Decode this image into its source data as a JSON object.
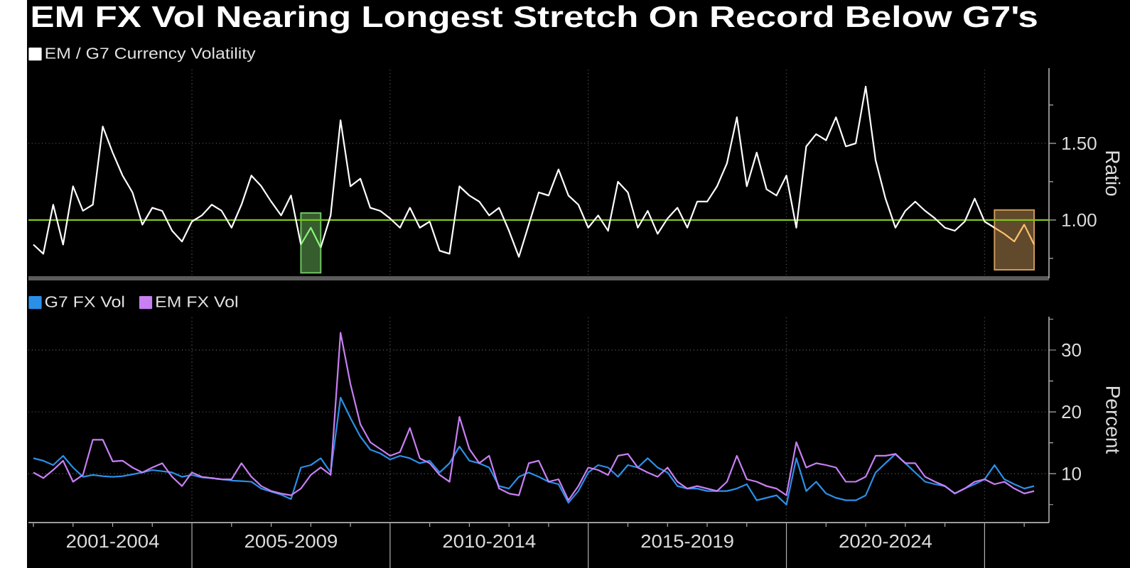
{
  "chart_data": [
    {
      "type": "line",
      "title": "EM FX Vol Nearing Longest Stretch On Record Below G7's",
      "ylabel": "Ratio",
      "categories": [
        null,
        null,
        null,
        null,
        null,
        null,
        null,
        null,
        null,
        null,
        null,
        null,
        null,
        null,
        null,
        null,
        null,
        null,
        null,
        null,
        null,
        null,
        null,
        null,
        null,
        null,
        null,
        null,
        null,
        null,
        null,
        null,
        null,
        null,
        null,
        null,
        null,
        null,
        null,
        null,
        null,
        null,
        null,
        null,
        null,
        null,
        null,
        null,
        null,
        null,
        null,
        null,
        null,
        null,
        null,
        null,
        null,
        null,
        null,
        null,
        null,
        null,
        null,
        null,
        null,
        null,
        null,
        null,
        null,
        null,
        null,
        null,
        null,
        null,
        null,
        null,
        null,
        null,
        null,
        null,
        null,
        null,
        null,
        null,
        null,
        null,
        null,
        null,
        null,
        null,
        null,
        null,
        null,
        null,
        null,
        null,
        null,
        null,
        null,
        null,
        null,
        null,
        null
      ],
      "ylim": [
        0.62,
        1.99
      ],
      "yticks": [
        {
          "value": 1.0,
          "label": "1.00"
        },
        {
          "value": 1.5,
          "label": "1.50"
        }
      ],
      "tick_labels": "y",
      "grid": true,
      "legend": "top left",
      "ref_lines": [
        {
          "axis": "y",
          "value": 1.0,
          "color": "#80c41c"
        }
      ],
      "series": [
        {
          "name": "EM / G7 Currency Volatility",
          "color": "#ffffff",
          "values": [
            0.84,
            0.78,
            1.1,
            0.84,
            1.22,
            1.06,
            1.1,
            1.61,
            1.44,
            1.29,
            1.18,
            0.97,
            1.08,
            1.06,
            0.93,
            0.86,
            0.99,
            1.03,
            1.1,
            1.06,
            0.95,
            1.1,
            1.29,
            1.22,
            1.12,
            1.03,
            1.16,
            0.84,
            null,
            null,
            null,
            null,
            null,
            null,
            null,
            null,
            null,
            null,
            null,
            null,
            null,
            null,
            null,
            null,
            null,
            null,
            null,
            null,
            null,
            null,
            null,
            null,
            null,
            null,
            null,
            null,
            null,
            null,
            null,
            null,
            null,
            null,
            null,
            null,
            null,
            null,
            null,
            null,
            null,
            null,
            null,
            null,
            null,
            null,
            null,
            null,
            null,
            null,
            null,
            null,
            null,
            null,
            null,
            null,
            null,
            null,
            null,
            null,
            null,
            null,
            null,
            null,
            null,
            null,
            null,
            null,
            null,
            null,
            null,
            null,
            null,
            null,
            null
          ]
        },
        {
          "color": "#ffffff",
          "values": [
            null,
            null,
            null,
            null,
            null,
            null,
            null,
            null,
            null,
            null,
            null,
            null,
            null,
            null,
            null,
            null,
            null,
            null,
            null,
            null,
            null,
            null,
            null,
            null,
            null,
            null,
            null,
            null,
            null,
            0.82,
            1.03,
            1.65,
            1.22,
            1.27,
            1.08,
            1.06,
            1.01,
            0.95,
            1.08,
            0.95,
            0.99,
            0.8,
            0.78,
            1.22,
            1.16,
            1.12,
            1.03,
            1.08,
            0.93,
            0.76,
            0.97,
            1.18,
            1.16,
            1.33,
            1.16,
            1.1,
            0.95,
            1.03,
            0.93,
            1.25,
            1.18,
            0.95,
            1.06,
            0.91,
            1.01,
            1.08,
            0.95,
            1.12,
            1.12,
            1.22,
            1.37,
            1.67,
            1.22,
            1.44,
            1.2,
            1.16,
            1.29,
            0.95,
            1.48,
            1.56,
            1.52,
            1.67,
            1.48,
            1.5,
            1.87,
            1.39,
            1.14,
            0.95,
            1.06,
            1.12,
            1.06,
            1.01,
            0.95,
            0.93,
            0.99,
            1.14,
            0.99,
            0.95,
            null,
            null,
            null,
            null,
            null
          ]
        },
        {
          "color": "#8cf57a",
          "values": [
            null,
            null,
            null,
            null,
            null,
            null,
            null,
            null,
            null,
            null,
            null,
            null,
            null,
            null,
            null,
            null,
            null,
            null,
            null,
            null,
            null,
            null,
            null,
            null,
            null,
            null,
            null,
            0.84,
            0.95,
            0.82,
            null,
            null,
            null,
            null,
            null,
            null,
            null,
            null,
            null,
            null,
            null,
            null,
            null,
            null,
            null,
            null,
            null,
            null,
            null,
            null,
            null,
            null,
            null,
            null,
            null,
            null,
            null,
            null,
            null,
            null,
            null,
            null,
            null,
            null,
            null,
            null,
            null,
            null,
            null,
            null,
            null,
            null,
            null,
            null,
            null,
            null,
            null,
            null,
            null,
            null,
            null,
            null,
            null,
            null,
            null,
            null,
            null,
            null,
            null,
            null,
            null,
            null,
            null,
            null,
            null,
            null,
            null,
            null,
            null,
            null,
            null,
            null,
            null
          ]
        },
        {
          "color": "#ffc070",
          "values": [
            null,
            null,
            null,
            null,
            null,
            null,
            null,
            null,
            null,
            null,
            null,
            null,
            null,
            null,
            null,
            null,
            null,
            null,
            null,
            null,
            null,
            null,
            null,
            null,
            null,
            null,
            null,
            null,
            null,
            null,
            null,
            null,
            null,
            null,
            null,
            null,
            null,
            null,
            null,
            null,
            null,
            null,
            null,
            null,
            null,
            null,
            null,
            null,
            null,
            null,
            null,
            null,
            null,
            null,
            null,
            null,
            null,
            null,
            null,
            null,
            null,
            null,
            null,
            null,
            null,
            null,
            null,
            null,
            null,
            null,
            null,
            null,
            null,
            null,
            null,
            null,
            null,
            null,
            null,
            null,
            null,
            null,
            null,
            null,
            null,
            null,
            null,
            null,
            null,
            null,
            null,
            null,
            null,
            null,
            null,
            null,
            null,
            0.95,
            0.91,
            0.86,
            0.97,
            0.84,
            null
          ]
        }
      ]
    },
    {
      "type": "line",
      "ylabel": "Percent",
      "categories": [
        null,
        null,
        null,
        null,
        null,
        null,
        null,
        null,
        "2001-2004",
        null,
        null,
        null,
        null,
        null,
        null,
        null,
        null,
        null,
        null,
        null,
        null,
        null,
        null,
        null,
        null,
        null,
        "2005-2009",
        null,
        null,
        null,
        null,
        null,
        null,
        null,
        null,
        null,
        null,
        null,
        null,
        null,
        null,
        null,
        null,
        null,
        null,
        null,
        "2010-2014",
        null,
        null,
        null,
        null,
        null,
        null,
        null,
        null,
        null,
        null,
        null,
        null,
        null,
        null,
        null,
        null,
        null,
        null,
        null,
        "2015-2019",
        null,
        null,
        null,
        null,
        null,
        null,
        null,
        null,
        null,
        null,
        null,
        null,
        null,
        null,
        null,
        null,
        null,
        null,
        null,
        "2020-2024",
        null,
        null,
        null,
        null,
        null,
        null,
        null,
        null,
        null,
        null,
        null,
        null,
        null,
        null,
        null,
        null
      ],
      "ylim": [
        2.1,
        35.4
      ],
      "yticks": [
        10,
        20,
        30
      ],
      "grid": true,
      "legend": "top left",
      "series": [
        {
          "name": "G7 FX Vol",
          "color": "#2b8fe8",
          "values": [
            12.5,
            12.1,
            11.4,
            12.9,
            11.0,
            9.5,
            9.8,
            9.6,
            9.5,
            9.6,
            9.9,
            10.2,
            10.6,
            10.4,
            10.2,
            9.5,
            9.8,
            9.4,
            9.3,
            9.1,
            8.9,
            8.8,
            8.7,
            7.6,
            7.1,
            6.6,
            5.9,
            11.0,
            11.4,
            12.5,
            10.2,
            22.3,
            19.0,
            16.0,
            13.9,
            13.3,
            12.3,
            12.9,
            12.5,
            11.7,
            12.1,
            10.2,
            11.7,
            14.4,
            12.1,
            11.7,
            11.0,
            8.0,
            7.6,
            9.5,
            10.2,
            9.5,
            8.7,
            8.3,
            5.3,
            7.2,
            10.2,
            11.4,
            11.0,
            9.5,
            11.4,
            11.0,
            12.5,
            11.0,
            10.2,
            8.0,
            7.6,
            7.6,
            7.2,
            7.2,
            7.2,
            7.6,
            8.3,
            5.7,
            6.1,
            6.5,
            5.0,
            12.5,
            7.2,
            8.7,
            6.8,
            6.1,
            5.7,
            5.7,
            6.5,
            10.2,
            11.7,
            13.2,
            11.7,
            10.2,
            8.7,
            8.3,
            8.0,
            6.8,
            7.6,
            8.3,
            9.1,
            11.4,
            9.1,
            8.3,
            7.6,
            8.0,
            null
          ]
        },
        {
          "name": "EM FX Vol",
          "color": "#c77ff2",
          "values": [
            10.2,
            9.3,
            10.6,
            12.1,
            8.7,
            9.8,
            15.5,
            15.5,
            12.0,
            12.1,
            11.0,
            10.2,
            11.0,
            11.7,
            9.5,
            8.0,
            10.2,
            9.5,
            9.3,
            9.1,
            9.1,
            11.7,
            9.5,
            8.0,
            7.2,
            6.8,
            6.5,
            7.6,
            9.8,
            11.0,
            9.8,
            32.8,
            24.5,
            18.0,
            15.1,
            14.0,
            12.9,
            13.5,
            17.4,
            12.5,
            11.7,
            9.8,
            8.7,
            19.2,
            14.0,
            11.7,
            12.9,
            7.6,
            6.8,
            6.5,
            11.7,
            12.1,
            8.7,
            9.1,
            5.7,
            8.0,
            11.0,
            10.6,
            9.8,
            12.9,
            13.2,
            11.0,
            10.2,
            9.5,
            11.0,
            8.7,
            7.6,
            8.0,
            7.6,
            7.2,
            8.7,
            12.9,
            9.1,
            8.7,
            8.0,
            7.6,
            6.5,
            15.1,
            11.0,
            11.7,
            11.4,
            11.0,
            8.7,
            8.7,
            9.5,
            12.9,
            12.9,
            13.2,
            11.7,
            11.7,
            9.5,
            8.7,
            8.0,
            6.8,
            7.6,
            8.7,
            9.1,
            8.3,
            8.7,
            7.6,
            6.8,
            7.2,
            null
          ]
        }
      ]
    }
  ]
}
